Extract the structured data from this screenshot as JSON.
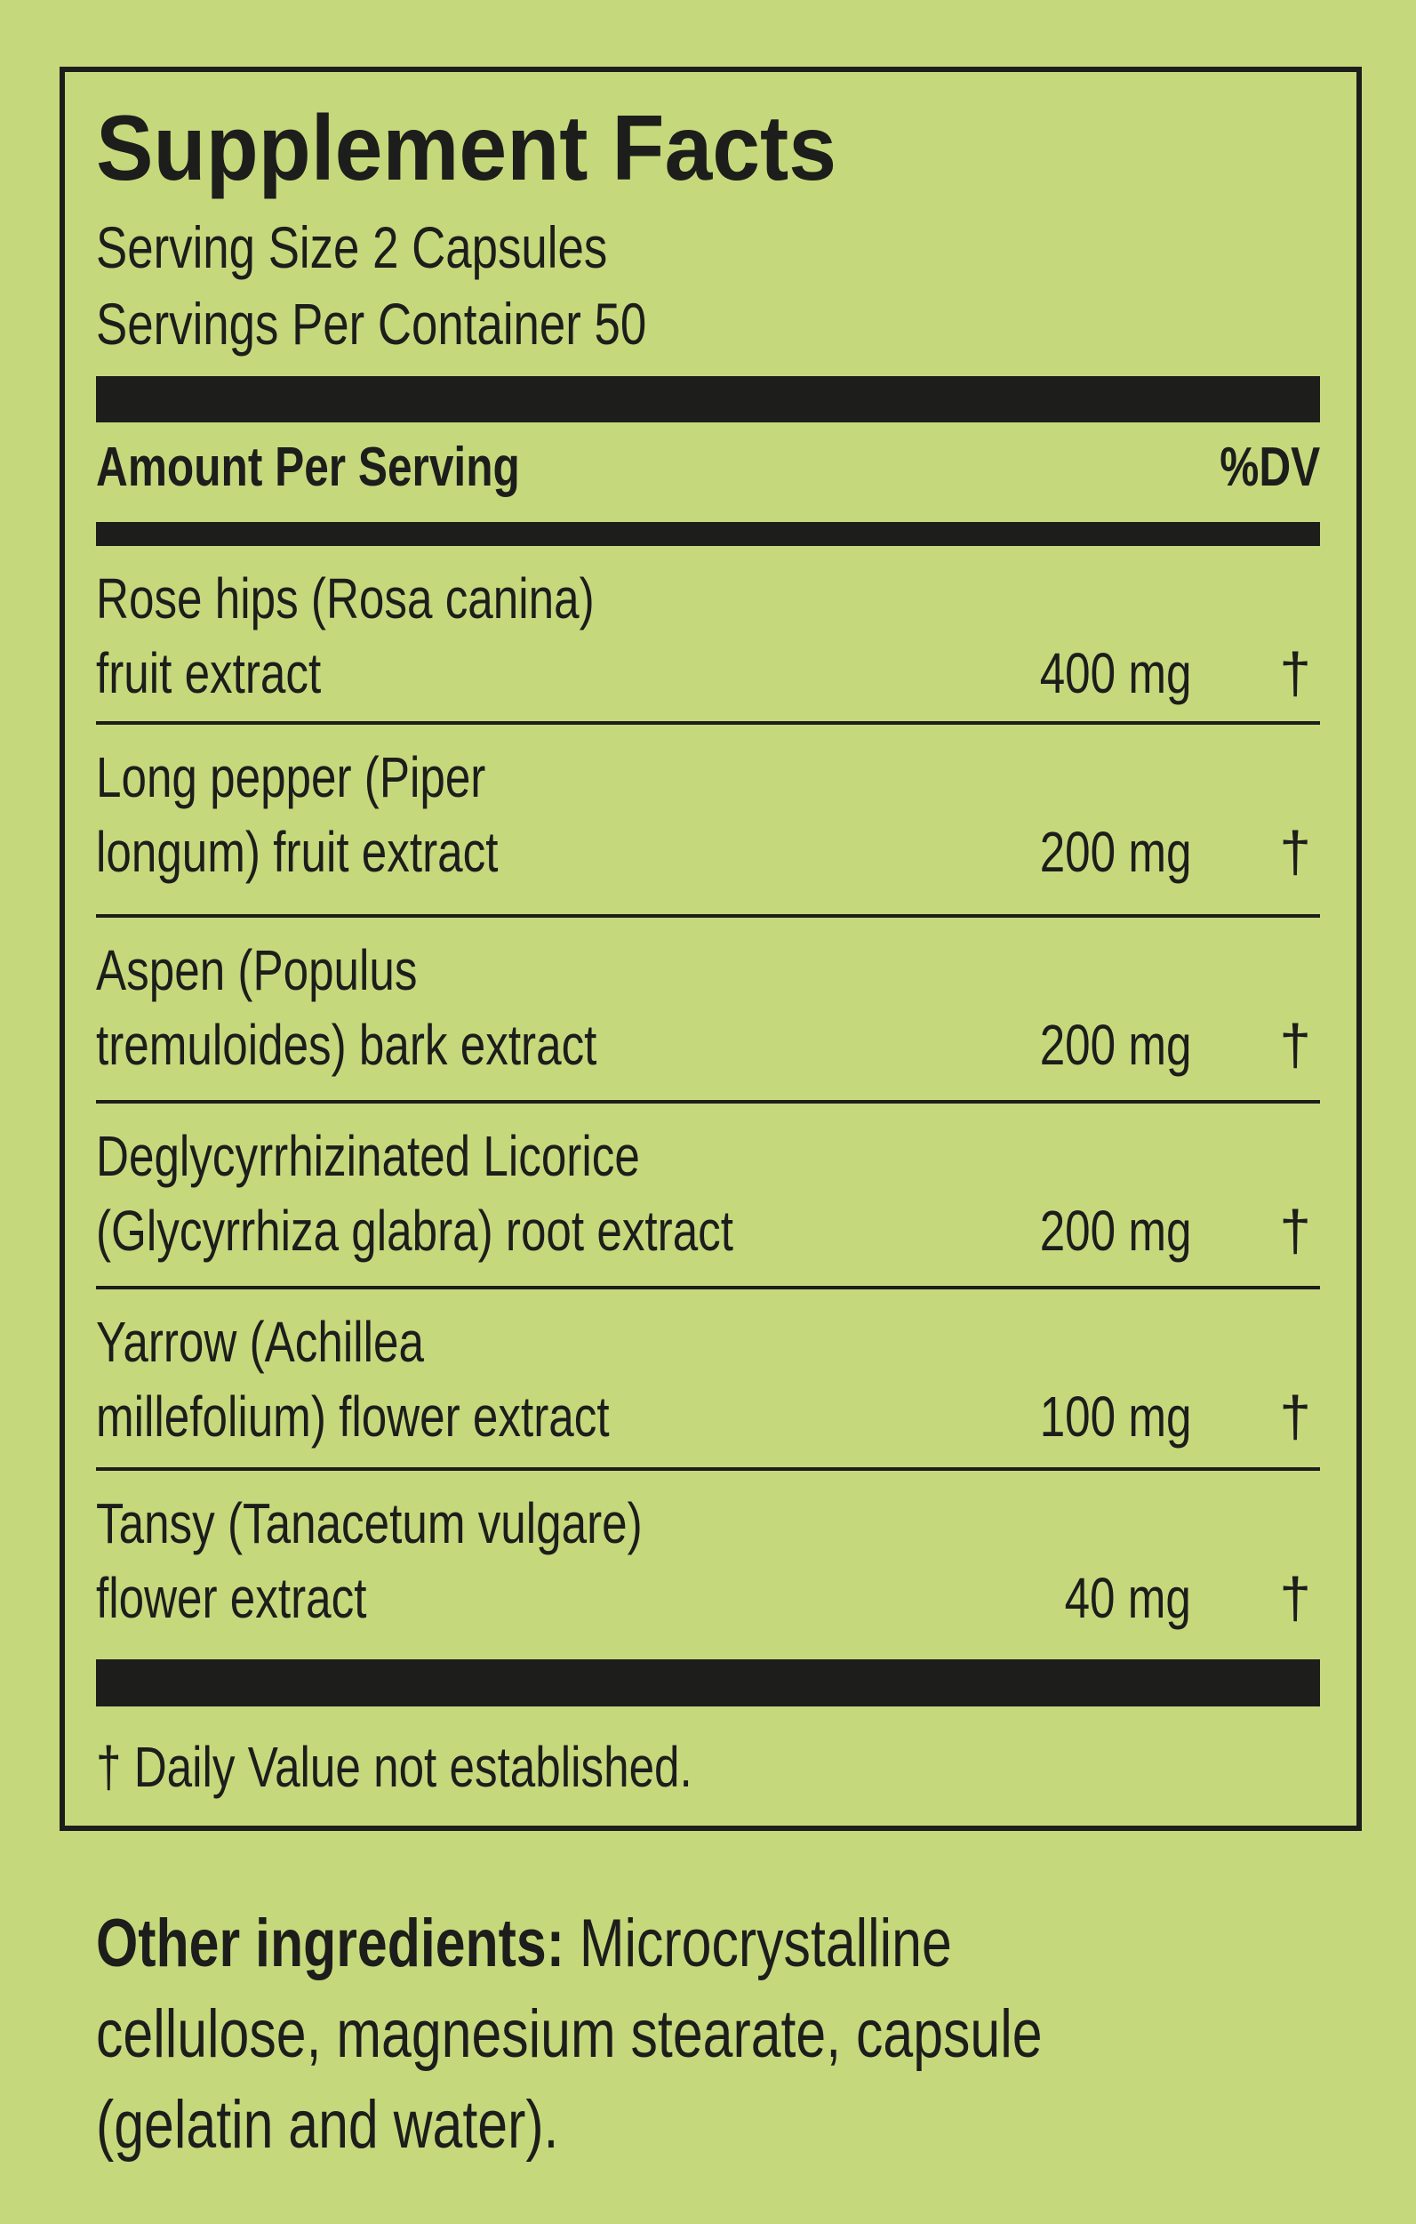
{
  "title": "Supplement Facts",
  "serving_size": "Serving Size 2 Capsules",
  "servings_per_container": "Servings Per Container 50",
  "header": {
    "amount": "Amount Per Serving",
    "dv": "%DV"
  },
  "ingredients": [
    {
      "line1": "Rose hips (Rosa canina)",
      "line2": "fruit extract",
      "amount": "400 mg",
      "dv": "†"
    },
    {
      "line1": "Long pepper (Piper",
      "line2": "longum) fruit extract",
      "amount": "200 mg",
      "dv": "†"
    },
    {
      "line1": "Aspen (Populus",
      "line2": "tremuloides) bark extract",
      "amount": "200 mg",
      "dv": "†"
    },
    {
      "line1": "Deglycyrrhizinated Licorice",
      "line2": "(Glycyrrhiza glabra) root extract",
      "amount": "200 mg",
      "dv": "†"
    },
    {
      "line1": "Yarrow (Achillea",
      "line2": "millefolium) flower extract",
      "amount": "100 mg",
      "dv": "†"
    },
    {
      "line1": "Tansy (Tanacetum vulgare)",
      "line2": "flower extract",
      "amount": "40 mg",
      "dv": "†"
    }
  ],
  "footnote": "† Daily Value not established.",
  "other": {
    "label": "Other ingredients:",
    "line1": " Microcrystalline",
    "line2": "cellulose, magnesium stearate, capsule",
    "line3": "(gelatin and water)."
  },
  "colors": {
    "background": "#c5d97c",
    "ink": "#1d1d1b"
  }
}
